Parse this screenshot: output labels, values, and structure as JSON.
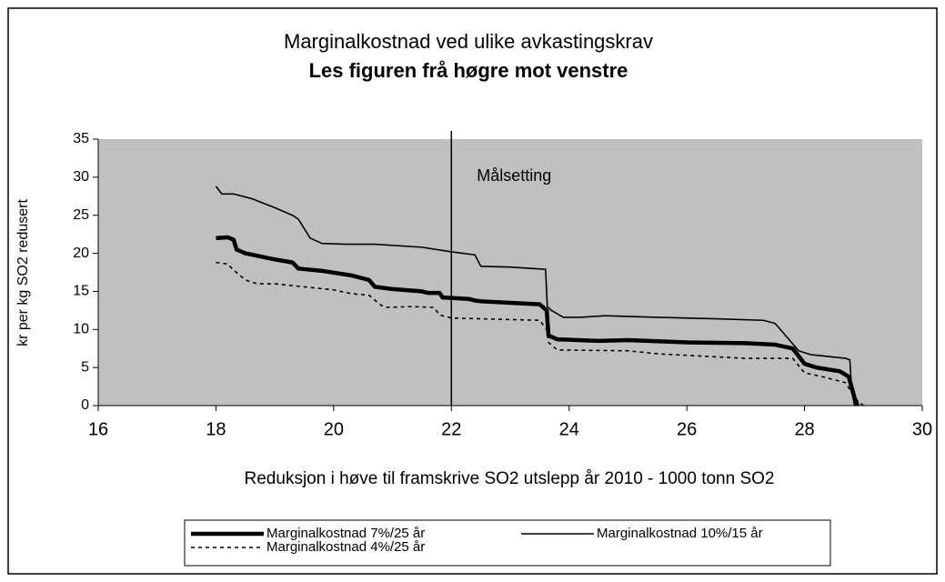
{
  "chart_data": {
    "type": "line",
    "title": "Marginalkostnad ved ulike avkastingskrav",
    "subtitle": "Les figuren frå høgre mot venstre",
    "x_label": "Reduksjon i høve til framskrive SO2 utslepp år 2010 - 1000 tonn SO2",
    "y_label": "kr per kg SO2 redusert",
    "xlim": [
      16,
      30
    ],
    "xticks": [
      16,
      18,
      20,
      22,
      24,
      26,
      28,
      30
    ],
    "ylim": [
      0,
      35
    ],
    "yticks": [
      0,
      5,
      10,
      15,
      20,
      25,
      30,
      35
    ],
    "target_x": 22,
    "annotation": "Målsetting",
    "series": [
      {
        "name": "Marginalkostnad 7%/25 år",
        "color": "#000000",
        "line_style": "thick",
        "x": [
          18,
          18.2,
          18.3,
          18.35,
          18.5,
          19,
          19.3,
          19.4,
          19.8,
          20.3,
          20.6,
          20.7,
          21,
          21.5,
          21.6,
          21.8,
          21.85,
          22.3,
          22.4,
          22.5,
          23,
          23.5,
          23.62,
          23.65,
          23.8,
          24.5,
          25,
          26,
          27,
          27.5,
          27.8,
          28,
          28.2,
          28.6,
          28.75,
          28.85,
          28.9
        ],
        "values": [
          22,
          22.1,
          21.8,
          20.5,
          20,
          19.2,
          18.8,
          18,
          17.7,
          17.1,
          16.5,
          15.6,
          15.3,
          15,
          14.8,
          14.8,
          14.2,
          14,
          13.8,
          13.7,
          13.5,
          13.3,
          12.5,
          9.2,
          8.7,
          8.5,
          8.6,
          8.3,
          8.2,
          8,
          7.5,
          5.5,
          5,
          4.5,
          3.8,
          1,
          0
        ]
      },
      {
        "name": "Marginalkostnad 10%/15 år",
        "color": "#000000",
        "line_style": "thin",
        "x": [
          18,
          18.1,
          18.3,
          18.6,
          19,
          19.3,
          19.4,
          19.6,
          19.8,
          20.2,
          20.7,
          21.5,
          22,
          22.4,
          22.5,
          23,
          23.6,
          23.63,
          23.7,
          23.9,
          24.2,
          24.6,
          25.5,
          26.5,
          27.3,
          27.5,
          27.7,
          27.9,
          28.1,
          28.7,
          28.77,
          28.8,
          28.85
        ],
        "values": [
          28.8,
          27.8,
          27.8,
          27.2,
          26,
          25,
          24.5,
          22,
          21.3,
          21.2,
          21.2,
          20.8,
          20.2,
          19.8,
          18.3,
          18.2,
          17.9,
          13,
          12.5,
          11.6,
          11.6,
          11.8,
          11.6,
          11.4,
          11.2,
          10.8,
          9,
          7.2,
          6.7,
          6.2,
          6,
          2,
          0
        ]
      },
      {
        "name": "Marginalkostnad 4%/25 år",
        "color": "#000000",
        "line_style": "dashed",
        "x": [
          18,
          18.2,
          18.3,
          18.5,
          18.7,
          19,
          19.5,
          20,
          20.3,
          20.6,
          20.8,
          20.9,
          21.3,
          21.7,
          21.8,
          22,
          22.5,
          23.5,
          23.62,
          23.65,
          23.8,
          25,
          25.5,
          26.5,
          27,
          27.8,
          28,
          28.3,
          28.7,
          28.85,
          29
        ],
        "values": [
          18.8,
          18.6,
          17.8,
          16.5,
          16,
          16,
          15.6,
          15.2,
          14.7,
          14.5,
          13.2,
          12.9,
          13,
          12.9,
          11.9,
          11.5,
          11.4,
          11.2,
          10,
          8.3,
          7.3,
          7.2,
          6.8,
          6.4,
          6.2,
          6.2,
          4.3,
          3.8,
          3,
          1,
          0
        ]
      }
    ]
  }
}
